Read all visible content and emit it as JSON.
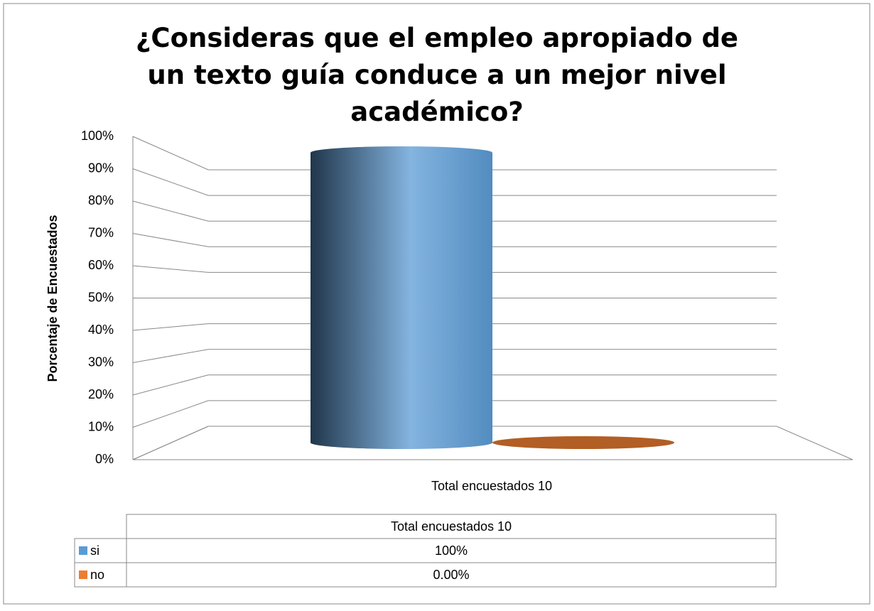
{
  "chart_data": {
    "type": "bar3d",
    "title": "¿Consideras que el empleo apropiado de un texto guía conduce a un mejor nivel académico?",
    "ylabel": "Porcentaje de Encuestados",
    "categories": [
      "Total encuestados 10"
    ],
    "series": [
      {
        "name": "si",
        "color": "#5b9bd5",
        "values": [
          100
        ],
        "value_labels": [
          "100%"
        ]
      },
      {
        "name": "no",
        "color": "#ed7d31",
        "values": [
          0
        ],
        "value_labels": [
          "0.00%"
        ]
      }
    ],
    "ylim": [
      0,
      100
    ],
    "yticks": [
      {
        "value": 0,
        "label": "0%"
      },
      {
        "value": 10,
        "label": "10%"
      },
      {
        "value": 20,
        "label": "20%"
      },
      {
        "value": 30,
        "label": "30%"
      },
      {
        "value": 40,
        "label": "40%"
      },
      {
        "value": 50,
        "label": "50%"
      },
      {
        "value": 60,
        "label": "60%"
      },
      {
        "value": 70,
        "label": "70%"
      },
      {
        "value": 80,
        "label": "80%"
      },
      {
        "value": 90,
        "label": "90%"
      },
      {
        "value": 100,
        "label": "100%"
      }
    ],
    "grid": true
  }
}
